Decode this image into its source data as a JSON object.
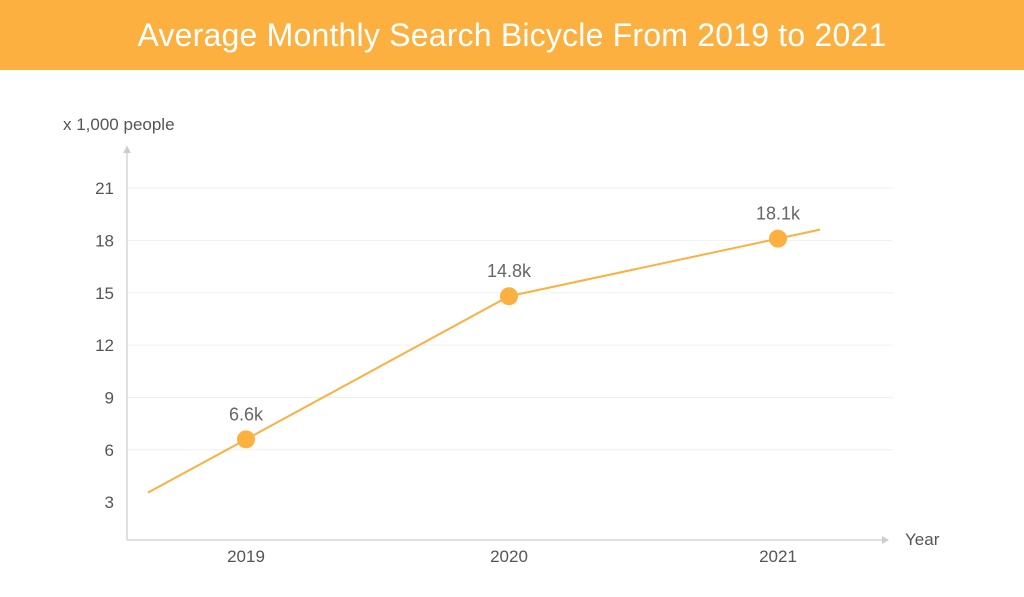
{
  "chart_data": {
    "type": "line",
    "title": "Average Monthly Search Bicycle From 2019 to 2021",
    "ylabel": "x 1,000 people",
    "xlabel": "Year",
    "y_ticks": [
      3,
      6,
      9,
      12,
      15,
      18,
      21
    ],
    "ylim": [
      0,
      22.5
    ],
    "categories": [
      "2019",
      "2020",
      "2021"
    ],
    "series": [
      {
        "values": [
          6.6,
          14.8,
          18.1
        ],
        "data_labels": [
          "6.6k",
          "14.8k",
          "18.1k"
        ],
        "color": "#fbb040"
      }
    ],
    "trend_line_extends_beyond_points": true,
    "grid": "horizontal, light",
    "legend": "none"
  },
  "colors": {
    "accent": "#fbb040",
    "title_text": "#ffffff",
    "axis": "#cccccc",
    "grid": "#f0f0f0",
    "text": "#555555"
  }
}
